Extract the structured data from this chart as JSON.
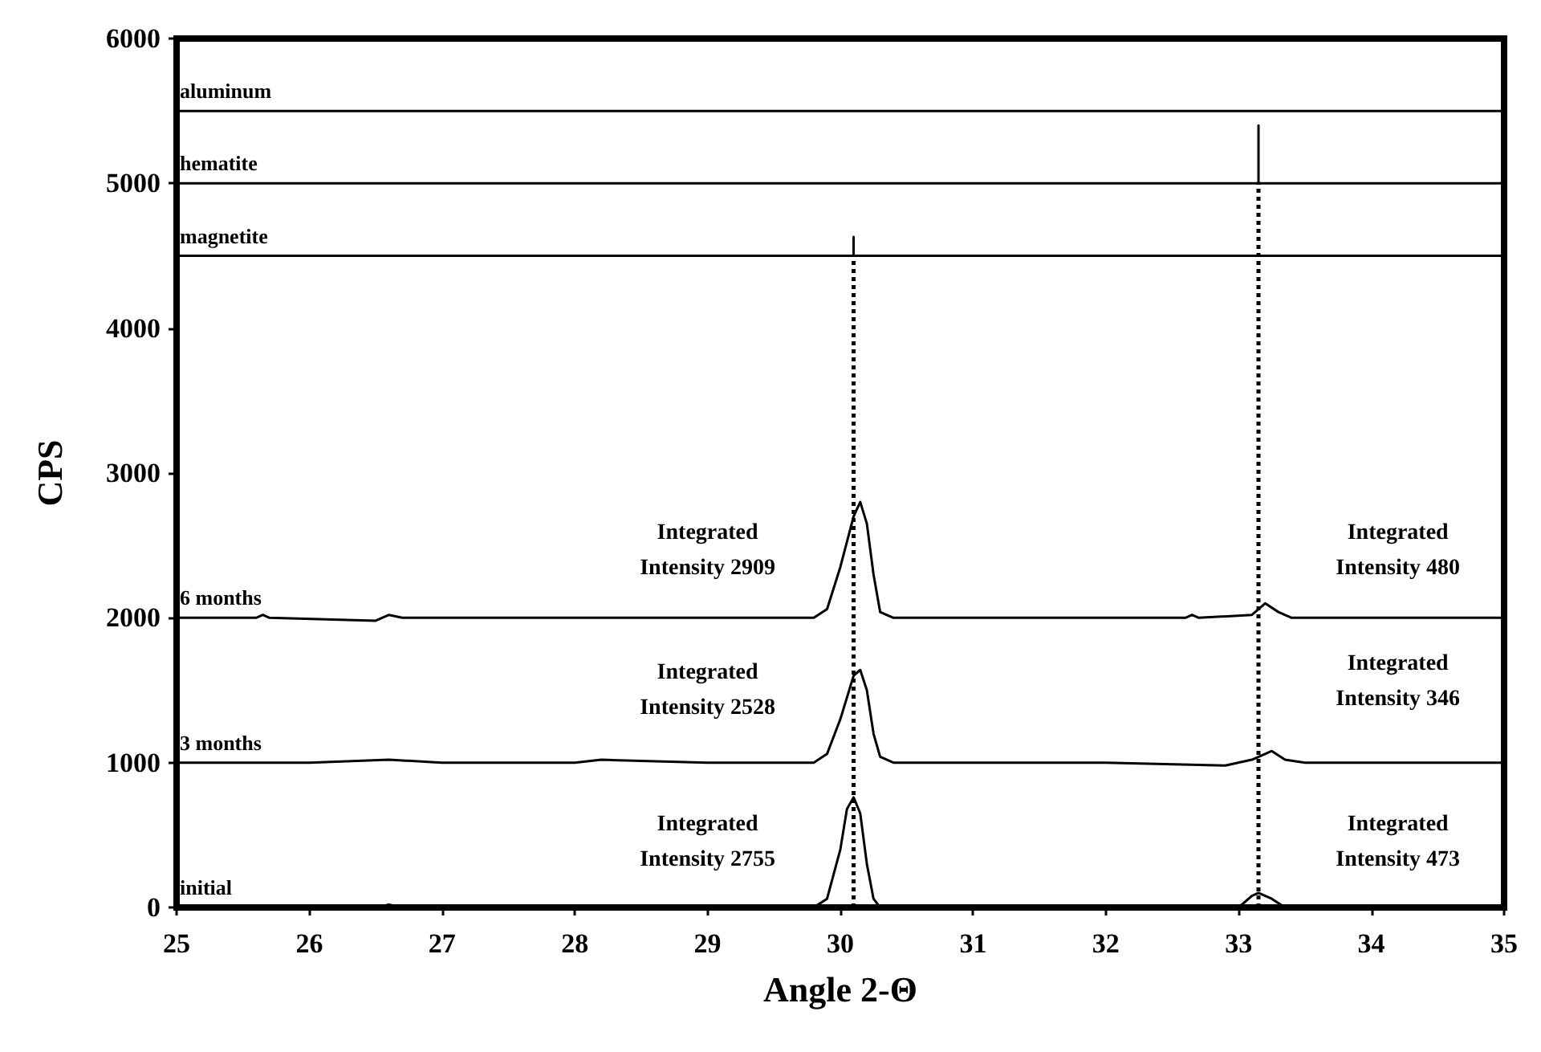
{
  "chart_data": {
    "type": "line",
    "xlabel": "Angle 2-Θ",
    "ylabel": "CPS",
    "xlim": [
      25,
      35
    ],
    "xticks": [
      25,
      26,
      27,
      28,
      29,
      30,
      31,
      32,
      33,
      34,
      35
    ],
    "ylim": [
      0,
      6000
    ],
    "yticks": [
      0,
      1000,
      2000,
      3000,
      4000,
      5000,
      6000
    ],
    "grid": false,
    "legend": false,
    "marker": "none",
    "series": [
      {
        "name": "aluminum",
        "color": "#000000",
        "line_style": "solid",
        "x": [
          25,
          35
        ],
        "values": [
          5500,
          5500
        ]
      },
      {
        "name": "hematite",
        "color": "#000000",
        "line_style": "solid",
        "x": [
          25,
          33.15,
          33.15,
          33.15,
          35
        ],
        "values": [
          5000,
          5000,
          5400,
          5000,
          5000
        ]
      },
      {
        "name": "magnetite",
        "color": "#000000",
        "line_style": "solid",
        "x": [
          25,
          30.1,
          30.1,
          30.1,
          35
        ],
        "values": [
          4500,
          4500,
          4630,
          4500,
          4500
        ]
      },
      {
        "color": "#000000",
        "line_style": "dotted",
        "x": [
          30.1,
          30.1
        ],
        "values": [
          0,
          4500
        ]
      },
      {
        "color": "#000000",
        "line_style": "dotted",
        "x": [
          33.15,
          33.15
        ],
        "values": [
          0,
          5000
        ]
      },
      {
        "name": "6 months",
        "color": "#000000",
        "line_style": "solid",
        "x": [
          25,
          25.6,
          25.65,
          25.7,
          26.5,
          26.6,
          26.7,
          27,
          28,
          29,
          29.8,
          29.9,
          30,
          30.1,
          30.15,
          30.2,
          30.25,
          30.3,
          30.4,
          31,
          32,
          32.6,
          32.65,
          32.7,
          33.1,
          33.2,
          33.3,
          33.4,
          33.6,
          34,
          34.5,
          35
        ],
        "values": [
          2000,
          2000,
          2020,
          2000,
          1980,
          2020,
          2000,
          2000,
          2000,
          2000,
          2000,
          2060,
          2350,
          2700,
          2800,
          2650,
          2300,
          2040,
          2000,
          2000,
          2000,
          2000,
          2020,
          2000,
          2020,
          2100,
          2040,
          2000,
          2000,
          2000,
          2000,
          2000
        ]
      },
      {
        "name": "3 months",
        "color": "#000000",
        "line_style": "solid",
        "x": [
          25,
          25.5,
          26,
          26.6,
          27,
          27.4,
          28,
          28.2,
          29,
          29.8,
          29.9,
          30,
          30.1,
          30.15,
          30.2,
          30.25,
          30.3,
          30.4,
          31,
          32,
          32.9,
          33.1,
          33.2,
          33.25,
          33.35,
          33.5,
          34,
          35
        ],
        "values": [
          1000,
          1000,
          1000,
          1020,
          1000,
          1000,
          1000,
          1020,
          1000,
          1000,
          1060,
          1300,
          1600,
          1640,
          1500,
          1200,
          1040,
          1000,
          1000,
          1000,
          980,
          1020,
          1060,
          1080,
          1020,
          1000,
          1000,
          1000
        ]
      },
      {
        "name": "initial",
        "color": "#000000",
        "line_style": "solid",
        "x": [
          25,
          26.5,
          26.6,
          26.7,
          27,
          28,
          29,
          29.8,
          29.9,
          30,
          30.05,
          30.1,
          30.15,
          30.2,
          30.25,
          30.3,
          30.4,
          31,
          32,
          33,
          33.1,
          33.15,
          33.25,
          33.35,
          34,
          35
        ],
        "values": [
          0,
          0,
          20,
          0,
          0,
          0,
          0,
          0,
          60,
          400,
          680,
          760,
          650,
          300,
          60,
          0,
          0,
          0,
          0,
          0,
          80,
          100,
          60,
          0,
          0,
          0
        ]
      }
    ],
    "annotations": [
      "Integrated\nIntensity 2909",
      "Integrated\nIntensity 480",
      "Integrated\nIntensity 2528",
      "Integrated\nIntensity 346",
      "Integrated\nIntensity 2755",
      "Integrated\nIntensity 473"
    ]
  }
}
